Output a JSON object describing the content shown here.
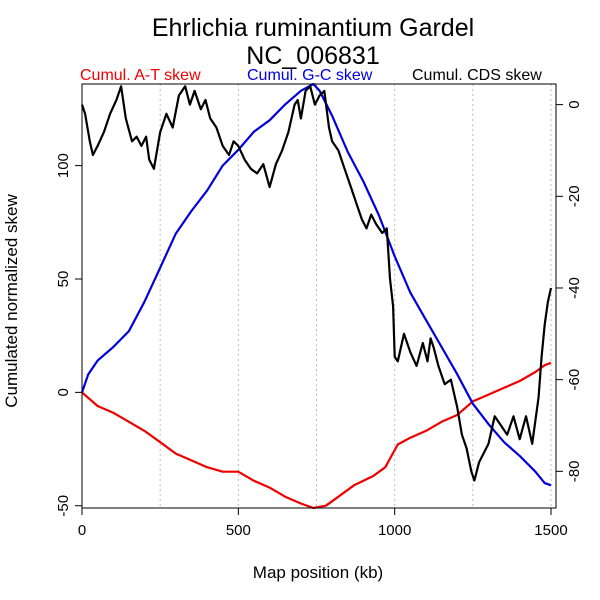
{
  "chart_data": {
    "type": "line",
    "title": "Ehrlichia ruminantium Gardel",
    "subtitle": "NC_006831",
    "xlabel": "Map position (kb)",
    "ylabel": "Cumulated normalized skew",
    "xlim": [
      0,
      1516
    ],
    "ylim": [
      -51,
      136
    ],
    "y2lim": [
      -88,
      4.5
    ],
    "x_ticks": [
      0,
      500,
      1000,
      1500
    ],
    "y_ticks": [
      -50,
      0,
      50,
      100
    ],
    "y2_ticks": [
      0,
      -20,
      -40,
      -60,
      -80
    ],
    "vgrid": [
      0,
      250,
      500,
      750,
      1000,
      1250,
      1500
    ],
    "grid": true,
    "legend_position": "top",
    "colors": {
      "at": "#ee0000",
      "gc": "#0000dd",
      "cds": "#000000",
      "grid": "#bbbbbb"
    },
    "series": [
      {
        "name": "Cumul. A-T skew",
        "axis": "left",
        "x": [
          0,
          50,
          100,
          150,
          200,
          250,
          300,
          350,
          400,
          450,
          500,
          550,
          600,
          650,
          700,
          740,
          780,
          820,
          870,
          930,
          970,
          990,
          1010,
          1050,
          1100,
          1150,
          1200,
          1250,
          1300,
          1350,
          1400,
          1450,
          1480,
          1500
        ],
        "y": [
          0,
          -6,
          -9,
          -13,
          -17,
          -22,
          -27,
          -30,
          -33,
          -35,
          -35,
          -39,
          -42,
          -46,
          -49,
          -51,
          -50,
          -46,
          -41,
          -37,
          -33,
          -28,
          -23,
          -20,
          -17,
          -13,
          -10,
          -4,
          -1,
          2,
          5,
          9,
          12,
          13
        ]
      },
      {
        "name": "Cumul. G-C skew",
        "axis": "left",
        "x": [
          0,
          20,
          50,
          100,
          150,
          200,
          250,
          300,
          350,
          400,
          450,
          500,
          550,
          600,
          650,
          700,
          740,
          760,
          800,
          850,
          900,
          950,
          1000,
          1050,
          1100,
          1150,
          1200,
          1250,
          1300,
          1350,
          1400,
          1450,
          1480,
          1500
        ],
        "y": [
          0,
          8,
          14,
          20,
          27,
          40,
          55,
          70,
          80,
          89,
          100,
          107,
          115,
          120,
          127,
          133,
          136,
          133,
          122,
          106,
          93,
          78,
          60,
          44,
          32,
          20,
          8,
          -5,
          -14,
          -22,
          -28,
          -35,
          -40,
          -41
        ]
      },
      {
        "name": "Cumul. CDS skew",
        "axis": "right",
        "x": [
          0,
          10,
          25,
          35,
          50,
          70,
          90,
          110,
          125,
          140,
          160,
          175,
          190,
          205,
          215,
          230,
          250,
          270,
          290,
          310,
          330,
          345,
          360,
          380,
          395,
          410,
          430,
          450,
          470,
          485,
          500,
          520,
          540,
          560,
          580,
          600,
          620,
          640,
          660,
          680,
          690,
          700,
          715,
          730,
          745,
          760,
          775,
          790,
          800,
          820,
          840,
          860,
          880,
          895,
          910,
          925,
          940,
          960,
          975,
          985,
          995,
          1000,
          1010,
          1030,
          1050,
          1070,
          1090,
          1105,
          1115,
          1125,
          1140,
          1160,
          1180,
          1200,
          1215,
          1230,
          1245,
          1255,
          1270,
          1285,
          1300,
          1320,
          1340,
          1360,
          1380,
          1400,
          1420,
          1440,
          1460,
          1470,
          1480,
          1490,
          1500
        ],
        "y": [
          0,
          -2,
          -8,
          -11,
          -9,
          -6,
          -2,
          1,
          4,
          -3,
          -8,
          -7,
          -9,
          -7,
          -12,
          -14,
          -6,
          -2,
          -5,
          2,
          4,
          0,
          3,
          -1,
          1,
          -3,
          -5,
          -9,
          -11,
          -8,
          -9,
          -12,
          -14,
          -15,
          -13,
          -18,
          -13,
          -10,
          -6,
          0,
          1,
          -3,
          3,
          4,
          0,
          2,
          3,
          -5,
          -8,
          -10,
          -14,
          -18,
          -22,
          -25,
          -27,
          -24,
          -26,
          -28,
          -27,
          -38,
          -44,
          -55,
          -56,
          -50,
          -54,
          -57,
          -52,
          -56,
          -51,
          -53,
          -57,
          -61,
          -60,
          -66,
          -72,
          -75,
          -80,
          -82,
          -78,
          -76,
          -74,
          -68,
          -70,
          -72,
          -68,
          -73,
          -68,
          -74,
          -64,
          -55,
          -48,
          -43,
          -40
        ]
      }
    ]
  }
}
